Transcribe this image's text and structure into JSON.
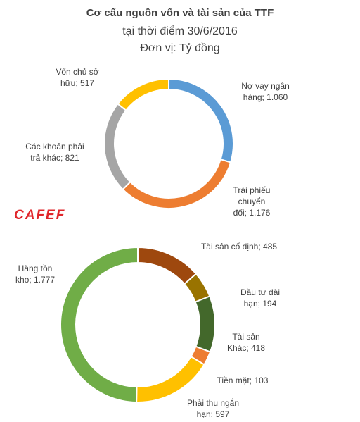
{
  "title": "Cơ cấu nguồn vốn và tài sản của TTF",
  "subtitle": "tại thời điểm 30/6/2016",
  "unit_note": "Đơn vị: Tỷ đồng",
  "logo": "CAFEF",
  "chart_data": [
    {
      "type": "donut",
      "categories": [
        "Nợ vay ngân hàng",
        "Trái phiếu chuyển đổi",
        "Các khoản phải trả khác",
        "Vốn chủ sở hữu"
      ],
      "values": [
        1060,
        1176,
        821,
        517
      ],
      "value_labels": [
        "1.060",
        "1.176",
        "821",
        "517"
      ],
      "colors": [
        "#5b9bd5",
        "#ed7d31",
        "#a5a5a5",
        "#ffc000"
      ]
    },
    {
      "type": "donut",
      "categories": [
        "Tài sản cố định",
        "Đầu tư dài hạn",
        "Tài sản Khác",
        "Tiền mặt",
        "Phải thu ngắn hạn",
        "Hàng tồn kho"
      ],
      "values": [
        485,
        194,
        418,
        103,
        597,
        1777
      ],
      "value_labels": [
        "485",
        "194",
        "418",
        "103",
        "597",
        "1.777"
      ],
      "colors": [
        "#9e480e",
        "#997300",
        "#43682b",
        "#ed7d31",
        "#ffc000",
        "#70ad47"
      ]
    }
  ]
}
